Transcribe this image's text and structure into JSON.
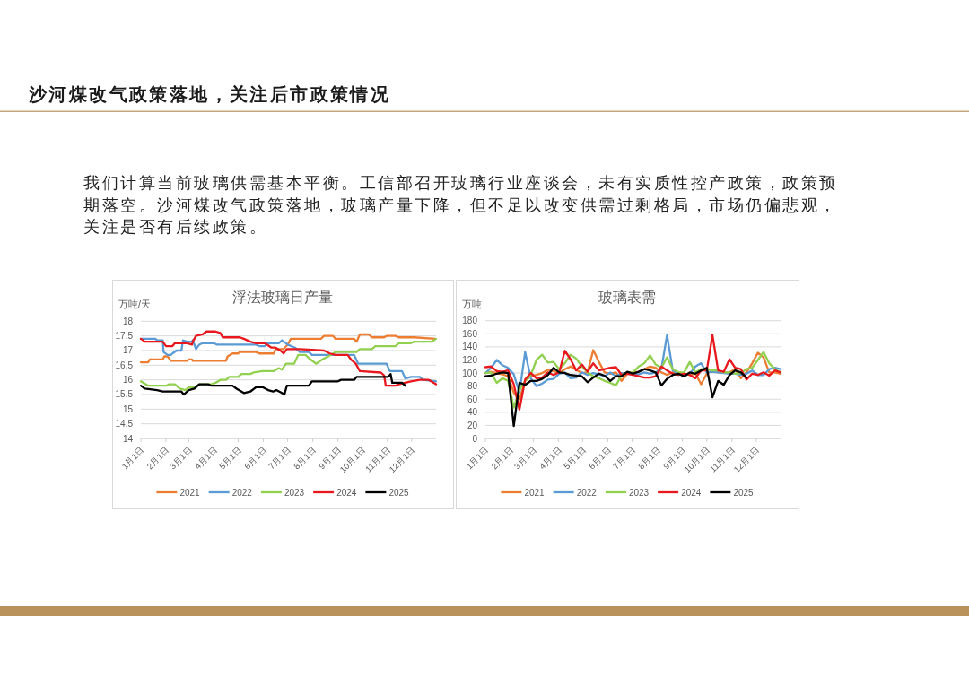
{
  "chart_data": [
    {
      "type": "other",
      "title": "沙河煤改气政策落地，关注后市政策情况",
      "annotations": [
        "我们计算当前玻璃供需基本平衡。工信部召开玻璃行业座谈会，未有实质性控产政策，政策预期落空。沙河煤改气政策落地，玻璃产量下降，但不足以改变供需过剩格局，市场仍偏悲观，关注是否有后续政策。"
      ]
    },
    {
      "type": "line",
      "title": "浮法玻璃日产量",
      "ylabel": "万吨/天",
      "xlim": [
        "--01-01",
        "--12-31"
      ],
      "xticks": [
        {
          "value": "--01-01",
          "label": "1月1日"
        },
        {
          "value": "--02-01",
          "label": "2月1日"
        },
        {
          "value": "--03-01",
          "label": "3月1日"
        },
        {
          "value": "--04-01",
          "label": "4月1日"
        },
        {
          "value": "--05-01",
          "label": "5月1日"
        },
        {
          "value": "--06-01",
          "label": "6月1日"
        },
        {
          "value": "--07-01",
          "label": "7月1日"
        },
        {
          "value": "--08-01",
          "label": "8月1日"
        },
        {
          "value": "--09-01",
          "label": "9月1日"
        },
        {
          "value": "--10-01",
          "label": "10月1日"
        },
        {
          "value": "--11-01",
          "label": "11月1日"
        },
        {
          "value": "--12-01",
          "label": "12月1日"
        }
      ],
      "ylim": [
        14,
        18
      ],
      "yticks": [
        14,
        14.5,
        15,
        15.5,
        16,
        16.5,
        17,
        17.5,
        18
      ],
      "grid": "y",
      "legend": "bottom",
      "series": [
        {
          "name": "2021",
          "color": "#ed7d31",
          "x": [
            "--01-01",
            "--01-10",
            "--01-12",
            "--01-28",
            "--01-30",
            "--02-03",
            "--02-07",
            "--02-27",
            "--03-01",
            "--03-05",
            "--03-06",
            "--04-16",
            "--04-18",
            "--04-24",
            "--05-01",
            "--05-03",
            "--05-23",
            "--05-27",
            "--06-14",
            "--06-16",
            "--06-26",
            "--07-01",
            "--07-05",
            "--08-11",
            "--08-15",
            "--08-26",
            "--08-29",
            "--09-21",
            "--09-24",
            "--09-28",
            "--10-09",
            "--10-13",
            "--10-28",
            "--10-31",
            "--11-11",
            "--11-15",
            "--11-30",
            "--12-04",
            "--12-30"
          ],
          "values": [
            16.6,
            16.6,
            16.7,
            16.7,
            16.8,
            16.8,
            16.65,
            16.65,
            16.7,
            16.7,
            16.65,
            16.65,
            16.8,
            16.9,
            16.9,
            16.95,
            16.95,
            16.9,
            16.9,
            17.05,
            17.05,
            17.2,
            17.4,
            17.4,
            17.5,
            17.5,
            17.4,
            17.4,
            17.3,
            17.55,
            17.55,
            17.45,
            17.45,
            17.5,
            17.5,
            17.45,
            17.45,
            17.45,
            17.4
          ]
        },
        {
          "name": "2022",
          "color": "#5b9bd5",
          "x": [
            "--01-01",
            "--01-19",
            "--01-21",
            "--01-28",
            "--01-29",
            "--02-03",
            "--02-07",
            "--02-09",
            "--02-14",
            "--02-20",
            "--02-22",
            "--02-27",
            "--03-05",
            "--03-06",
            "--03-10",
            "--03-14",
            "--03-18",
            "--04-01",
            "--04-05",
            "--05-23",
            "--05-27",
            "--06-03",
            "--06-05",
            "--06-20",
            "--06-24",
            "--07-01",
            "--07-10",
            "--07-16",
            "--07-27",
            "--07-31",
            "--09-21",
            "--09-26",
            "--10-31",
            "--11-04",
            "--11-19",
            "--11-23",
            "--11-30",
            "--12-11",
            "--12-15",
            "--12-31"
          ],
          "values": [
            17.4,
            17.4,
            17.35,
            17.35,
            16.95,
            16.85,
            16.85,
            16.9,
            17.0,
            17.0,
            17.35,
            17.3,
            17.3,
            17.35,
            17.05,
            17.2,
            17.25,
            17.25,
            17.2,
            17.2,
            17.15,
            17.15,
            17.25,
            17.25,
            17.35,
            17.2,
            17.1,
            16.95,
            16.95,
            16.85,
            16.85,
            16.55,
            16.55,
            16.3,
            16.3,
            16.05,
            16.1,
            16.1,
            16.0,
            15.95
          ]
        },
        {
          "name": "2023",
          "color": "#92d050",
          "x": [
            "--01-01",
            "--01-10",
            "--02-01",
            "--02-05",
            "--02-12",
            "--02-18",
            "--02-25",
            "--03-01",
            "--03-10",
            "--03-14",
            "--03-29",
            "--04-03",
            "--04-09",
            "--04-16",
            "--04-20",
            "--05-01",
            "--05-05",
            "--05-16",
            "--05-20",
            "--05-31",
            "--06-14",
            "--06-20",
            "--06-24",
            "--06-29",
            "--07-09",
            "--07-14",
            "--07-23",
            "--07-29",
            "--08-05",
            "--08-13",
            "--08-20",
            "--08-29",
            "--09-24",
            "--09-28",
            "--10-13",
            "--10-17",
            "--11-11",
            "--11-15",
            "--11-30",
            "--12-04",
            "--12-26",
            "--12-31"
          ],
          "values": [
            15.95,
            15.8,
            15.8,
            15.85,
            15.85,
            15.7,
            15.65,
            15.75,
            15.75,
            15.85,
            15.85,
            15.9,
            16.0,
            16.0,
            16.1,
            16.1,
            16.2,
            16.2,
            16.25,
            16.3,
            16.3,
            16.4,
            16.35,
            16.55,
            16.55,
            16.85,
            16.85,
            16.7,
            16.55,
            16.7,
            16.8,
            16.95,
            16.95,
            17.05,
            17.05,
            17.15,
            17.15,
            17.25,
            17.25,
            17.3,
            17.3,
            17.4
          ]
        },
        {
          "name": "2024",
          "color": "#e8191e",
          "x": [
            "--01-01",
            "--01-06",
            "--01-28",
            "--02-01",
            "--02-09",
            "--02-12",
            "--02-27",
            "--03-05",
            "--03-06",
            "--03-10",
            "--03-18",
            "--03-23",
            "--04-03",
            "--04-09",
            "--04-12",
            "--04-27",
            "--05-03",
            "--05-08",
            "--05-16",
            "--05-23",
            "--06-03",
            "--06-11",
            "--06-16",
            "--06-22",
            "--06-26",
            "--06-30",
            "--07-16",
            "--08-15",
            "--08-22",
            "--08-29",
            "--09-13",
            "--09-17",
            "--09-23",
            "--09-28",
            "--10-24",
            "--10-28",
            "--10-30",
            "--11-11",
            "--11-15",
            "--11-30",
            "--12-11",
            "--12-22",
            "--12-31"
          ],
          "values": [
            17.4,
            17.3,
            17.3,
            17.15,
            17.15,
            17.25,
            17.25,
            17.2,
            17.3,
            17.5,
            17.55,
            17.65,
            17.65,
            17.6,
            17.45,
            17.45,
            17.45,
            17.4,
            17.3,
            17.25,
            17.25,
            17.1,
            17.1,
            17.0,
            16.9,
            17.05,
            17.05,
            17.0,
            16.9,
            16.85,
            16.85,
            16.7,
            16.55,
            16.3,
            16.25,
            16.15,
            15.8,
            15.8,
            15.85,
            15.95,
            16.0,
            16.0,
            15.85
          ]
        },
        {
          "name": "2025",
          "color": "#000000",
          "x": [
            "--01-01",
            "--01-06",
            "--01-21",
            "--01-28",
            "--02-20",
            "--02-23",
            "--03-01",
            "--03-08",
            "--03-14",
            "--03-25",
            "--03-29",
            "--04-24",
            "--04-29",
            "--05-08",
            "--05-16",
            "--05-23",
            "--05-31",
            "--06-07",
            "--06-13",
            "--06-17",
            "--06-24",
            "--06-27",
            "--06-30",
            "--07-27",
            "--07-31",
            "--09-01",
            "--09-05",
            "--09-21",
            "--09-24",
            "--11-02",
            "--11-05",
            "--11-07",
            "--11-19",
            "--11-23"
          ],
          "values": [
            15.8,
            15.7,
            15.65,
            15.6,
            15.6,
            15.5,
            15.65,
            15.7,
            15.85,
            15.85,
            15.8,
            15.8,
            15.7,
            15.55,
            15.6,
            15.75,
            15.75,
            15.65,
            15.6,
            15.65,
            15.55,
            15.5,
            15.8,
            15.8,
            15.95,
            15.95,
            16.0,
            16.0,
            16.1,
            16.1,
            16.2,
            15.9,
            15.9,
            15.8
          ]
        }
      ]
    },
    {
      "type": "line",
      "title": "玻璃表需",
      "ylabel": "万吨",
      "xlim": [
        "--01-01",
        "--12-31"
      ],
      "xticks": [
        {
          "value": "--01-01",
          "label": "1月1日"
        },
        {
          "value": "--02-01",
          "label": "2月1日"
        },
        {
          "value": "--03-01",
          "label": "3月1日"
        },
        {
          "value": "--04-01",
          "label": "4月1日"
        },
        {
          "value": "--05-01",
          "label": "5月1日"
        },
        {
          "value": "--06-01",
          "label": "6月1日"
        },
        {
          "value": "--07-01",
          "label": "7月1日"
        },
        {
          "value": "--08-01",
          "label": "8月1日"
        },
        {
          "value": "--09-01",
          "label": "9月1日"
        },
        {
          "value": "--10-01",
          "label": "10月1日"
        },
        {
          "value": "--11-01",
          "label": "11月1日"
        },
        {
          "value": "--12-01",
          "label": "12月1日"
        }
      ],
      "ylim": [
        0,
        180
      ],
      "yticks": [
        0,
        20,
        40,
        60,
        80,
        100,
        120,
        140,
        160,
        180
      ],
      "grid": "y",
      "legend": "bottom",
      "x": [
        "--01-01",
        "--01-08",
        "--01-15",
        "--01-22",
        "--01-29",
        "--02-05",
        "--02-12",
        "--02-19",
        "--02-26",
        "--03-05",
        "--03-12",
        "--03-19",
        "--03-26",
        "--04-02",
        "--04-09",
        "--04-16",
        "--04-23",
        "--04-30",
        "--05-07",
        "--05-14",
        "--05-21",
        "--05-28",
        "--06-04",
        "--06-11",
        "--06-18",
        "--06-25",
        "--07-02",
        "--07-09",
        "--07-16",
        "--07-23",
        "--07-30",
        "--08-06",
        "--08-13",
        "--08-20",
        "--08-27",
        "--09-03",
        "--09-10",
        "--09-17",
        "--09-24",
        "--10-01",
        "--10-08",
        "--10-15",
        "--10-22",
        "--10-29",
        "--11-05",
        "--11-12",
        "--11-19",
        "--11-26",
        "--12-03",
        "--12-10",
        "--12-17",
        "--12-24",
        "--12-31"
      ],
      "series": [
        {
          "name": "2021",
          "color": "#ed7d31",
          "values": [
            100,
            102,
            100,
            98,
            95,
            70,
            60,
            88,
            95,
            97,
            100,
            105,
            103,
            100,
            106,
            110,
            105,
            100,
            101,
            135,
            117,
            101,
            99,
            101,
            88,
            99,
            101,
            102,
            106,
            110,
            108,
            101,
            97,
            101,
            101,
            99,
            97,
            99,
            83,
            99,
            104,
            101,
            101,
            101,
            106,
            92,
            101,
            115,
            131,
            124,
            101,
            101,
            99
          ]
        },
        {
          "name": "2022",
          "color": "#5b9bd5",
          "values": [
            100,
            108,
            120,
            112,
            108,
            98,
            70,
            132,
            92,
            80,
            84,
            90,
            91,
            99,
            101,
            92,
            93,
            101,
            97,
            100,
            98,
            95,
            101,
            95,
            100,
            99,
            98,
            98,
            101,
            99,
            101,
            106,
            158,
            104,
            99,
            95,
            99,
            110,
            115,
            101,
            102,
            101,
            100,
            99,
            99,
            97,
            99,
            104,
            97,
            97,
            106,
            108,
            106
          ]
        },
        {
          "name": "2023",
          "color": "#92d050",
          "values": [
            100,
            101,
            85,
            92,
            88,
            47,
            75,
            88,
            97,
            120,
            128,
            116,
            117,
            106,
            115,
            128,
            122,
            110,
            101,
            95,
            92,
            88,
            85,
            81,
            97,
            101,
            101,
            110,
            115,
            127,
            113,
            108,
            124,
            106,
            101,
            101,
            117,
            101,
            106,
            106,
            104,
            104,
            101,
            101,
            99,
            100,
            106,
            108,
            120,
            132,
            115,
            106,
            101
          ]
        },
        {
          "name": "2024",
          "color": "#e8191e",
          "values": [
            109,
            110,
            103,
            102,
            104,
            83,
            44,
            90,
            100,
            92,
            93,
            101,
            97,
            101,
            134,
            121,
            104,
            113,
            102,
            115,
            104,
            106,
            108,
            109,
            97,
            99,
            97,
            95,
            93,
            93,
            95,
            110,
            104,
            99,
            97,
            99,
            97,
            92,
            104,
            104,
            158,
            104,
            102,
            121,
            108,
            106,
            90,
            99,
            97,
            101,
            96,
            104,
            101
          ]
        },
        {
          "name": "2025",
          "color": "#000000",
          "values": [
            95,
            96,
            99,
            101,
            100,
            19,
            85,
            82,
            88,
            88,
            91,
            97,
            108,
            101,
            100,
            97,
            96,
            95,
            86,
            93,
            99,
            96,
            88,
            95,
            95,
            102,
            99,
            102,
            106,
            104,
            101,
            81,
            91,
            97,
            99,
            95,
            101,
            99,
            104,
            108,
            63,
            88,
            82,
            97,
            104,
            101,
            93,
            null,
            null,
            null,
            null,
            null,
            null
          ]
        }
      ]
    }
  ]
}
